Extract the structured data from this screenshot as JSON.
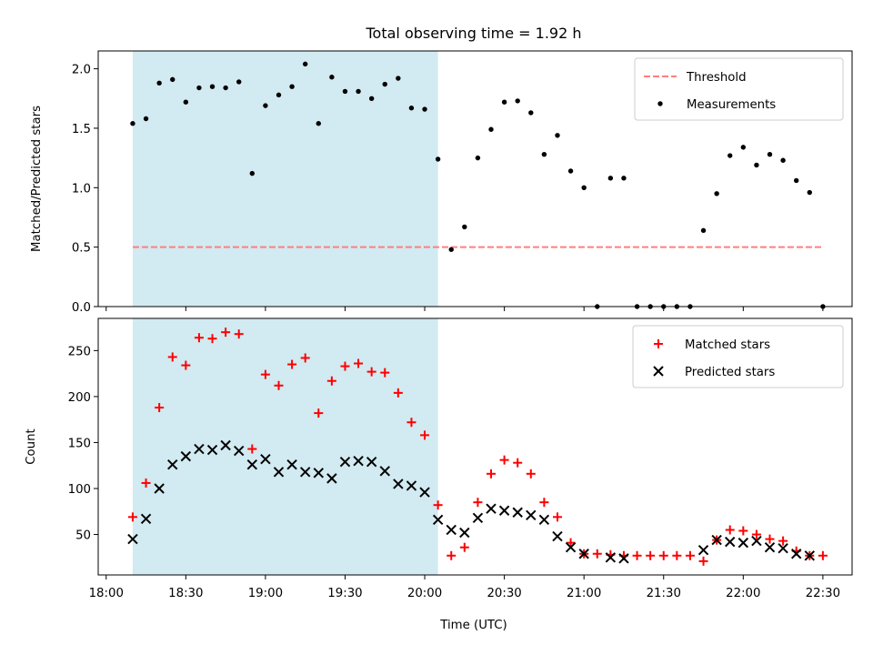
{
  "chart_data": [
    {
      "type": "scatter",
      "title": "Total observing time = 1.92 h",
      "xlabel": "",
      "ylabel": "Matched/Predicted stars",
      "ylim": [
        0,
        2.15
      ],
      "yticks": [
        0.0,
        0.5,
        1.0,
        1.5,
        2.0
      ],
      "ytick_labels": [
        "0.0",
        "0.5",
        "1.0",
        "1.5",
        "2.0"
      ],
      "xlim": [
        "17:57",
        "22:41"
      ],
      "xtick_labels": [
        "18:00",
        "18:30",
        "19:00",
        "19:30",
        "20:00",
        "20:30",
        "21:00",
        "21:30",
        "22:00",
        "22:30"
      ],
      "shaded_span": [
        "18:10",
        "20:05"
      ],
      "shaded_color": "#add8e6",
      "legend": {
        "position": "upper right",
        "entries": [
          "Threshold",
          "Measurements"
        ]
      },
      "threshold": {
        "name": "Threshold",
        "value": 0.5,
        "x": [
          "18:10",
          "22:30"
        ],
        "color": "#ff7f7f",
        "style": "dashed"
      },
      "series": [
        {
          "name": "Measurements",
          "color": "#000000",
          "marker": "dot",
          "x": [
            "18:10",
            "18:15",
            "18:20",
            "18:25",
            "18:30",
            "18:35",
            "18:40",
            "18:45",
            "18:50",
            "18:55",
            "19:00",
            "19:05",
            "19:10",
            "19:15",
            "19:20",
            "19:25",
            "19:30",
            "19:35",
            "19:40",
            "19:45",
            "19:50",
            "19:55",
            "20:00",
            "20:05",
            "20:10",
            "20:15",
            "20:20",
            "20:25",
            "20:30",
            "20:35",
            "20:40",
            "20:45",
            "20:50",
            "20:55",
            "21:00",
            "21:05",
            "21:10",
            "21:15",
            "21:20",
            "21:25",
            "21:30",
            "21:35",
            "21:40",
            "21:45",
            "21:50",
            "21:55",
            "22:00",
            "22:05",
            "22:10",
            "22:15",
            "22:20",
            "22:25",
            "22:30"
          ],
          "values": [
            1.54,
            1.58,
            1.88,
            1.91,
            1.72,
            1.84,
            1.85,
            1.84,
            1.89,
            1.12,
            1.69,
            1.78,
            1.85,
            2.04,
            1.54,
            1.93,
            1.81,
            1.81,
            1.75,
            1.87,
            1.92,
            1.67,
            1.66,
            1.24,
            0.48,
            0.67,
            1.25,
            1.49,
            1.72,
            1.73,
            1.63,
            1.28,
            1.44,
            1.14,
            1.0,
            0.0,
            1.08,
            1.08,
            0.0,
            0.0,
            0.0,
            0.0,
            0.0,
            0.64,
            0.95,
            1.27,
            1.34,
            1.19,
            1.28,
            1.23,
            1.06,
            0.96,
            0.0
          ]
        }
      ]
    },
    {
      "type": "scatter",
      "title": "",
      "xlabel": "Time (UTC)",
      "ylabel": "Count",
      "ylim": [
        6,
        285
      ],
      "yticks": [
        50,
        100,
        150,
        200,
        250
      ],
      "ytick_labels": [
        "50",
        "100",
        "150",
        "200",
        "250"
      ],
      "xlim": [
        "17:57",
        "22:41"
      ],
      "xtick_labels": [
        "18:00",
        "18:30",
        "19:00",
        "19:30",
        "20:00",
        "20:30",
        "21:00",
        "21:30",
        "22:00",
        "22:30"
      ],
      "shaded_span": [
        "18:10",
        "20:05"
      ],
      "shaded_color": "#add8e6",
      "legend": {
        "position": "upper right",
        "entries": [
          "Matched stars",
          "Predicted stars"
        ]
      },
      "series": [
        {
          "name": "Matched stars",
          "color": "#ff0000",
          "marker": "plus",
          "x": [
            "18:10",
            "18:15",
            "18:20",
            "18:25",
            "18:30",
            "18:35",
            "18:40",
            "18:45",
            "18:50",
            "18:55",
            "19:00",
            "19:05",
            "19:10",
            "19:15",
            "19:20",
            "19:25",
            "19:30",
            "19:35",
            "19:40",
            "19:45",
            "19:50",
            "19:55",
            "20:00",
            "20:05",
            "20:10",
            "20:15",
            "20:20",
            "20:25",
            "20:30",
            "20:35",
            "20:40",
            "20:45",
            "20:50",
            "20:55",
            "21:00",
            "21:05",
            "21:10",
            "21:15",
            "21:20",
            "21:25",
            "21:30",
            "21:35",
            "21:40",
            "21:45",
            "21:50",
            "21:55",
            "22:00",
            "22:05",
            "22:10",
            "22:15",
            "22:20",
            "22:25",
            "22:30"
          ],
          "values": [
            69,
            106,
            188,
            243,
            234,
            264,
            263,
            270,
            268,
            143,
            224,
            212,
            235,
            242,
            182,
            217,
            233,
            236,
            227,
            226,
            204,
            172,
            158,
            82,
            27,
            36,
            85,
            116,
            131,
            128,
            116,
            85,
            69,
            41,
            29,
            29,
            28,
            27,
            27,
            27,
            27,
            27,
            27,
            21,
            44,
            55,
            54,
            50,
            45,
            43,
            32,
            27,
            27
          ]
        },
        {
          "name": "Predicted stars",
          "color": "#000000",
          "marker": "x",
          "x": [
            "18:10",
            "18:15",
            "18:20",
            "18:25",
            "18:30",
            "18:35",
            "18:40",
            "18:45",
            "18:50",
            "18:55",
            "19:00",
            "19:05",
            "19:10",
            "19:15",
            "19:20",
            "19:25",
            "19:30",
            "19:35",
            "19:40",
            "19:45",
            "19:50",
            "19:55",
            "20:00",
            "20:05",
            "20:10",
            "20:15",
            "20:20",
            "20:25",
            "20:30",
            "20:35",
            "20:40",
            "20:45",
            "20:50",
            "20:55",
            "21:00",
            "21:05",
            "21:10",
            "21:15",
            "21:45",
            "21:50",
            "21:55",
            "22:00",
            "22:05",
            "22:10",
            "22:15",
            "22:20",
            "22:25"
          ],
          "values": [
            45,
            67,
            100,
            126,
            135,
            143,
            142,
            147,
            141,
            126,
            132,
            118,
            126,
            118,
            117,
            111,
            129,
            130,
            129,
            119,
            105,
            103,
            96,
            66,
            55,
            52,
            68,
            78,
            76,
            74,
            71,
            66,
            48,
            36,
            29,
            null,
            25,
            24,
            33,
            44,
            42,
            41,
            43,
            36,
            35,
            29,
            27
          ]
        }
      ]
    }
  ]
}
